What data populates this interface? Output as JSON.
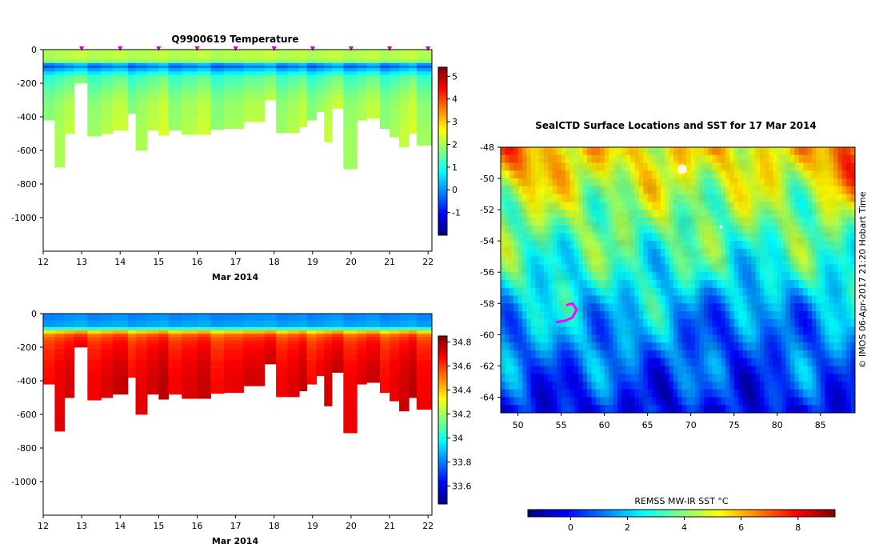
{
  "chart_data": [
    {
      "type": "heatmap",
      "title": "Q9900619  Temperature",
      "xlabel": "Mar 2014",
      "ylabel": "",
      "xlim": [
        12,
        22.1
      ],
      "ylim": [
        -1200,
        0
      ],
      "x_ticks": [
        "12",
        "13",
        "14",
        "15",
        "16",
        "17",
        "18",
        "19",
        "20",
        "21",
        "22"
      ],
      "y_ticks": [
        "0",
        "-200",
        "-400",
        "-600",
        "-800",
        "-1000"
      ],
      "colorbar": {
        "min": -2,
        "max": 5.4,
        "ticks": [
          "-1",
          "0",
          "1",
          "2",
          "3",
          "4",
          "5"
        ]
      },
      "surface_markers_x": [
        13,
        14,
        15,
        16,
        17,
        18,
        19,
        20,
        21,
        22
      ],
      "profile_x": [
        12.0,
        12.3,
        12.55,
        12.8,
        13.15,
        13.5,
        13.8,
        14.2,
        14.4,
        14.7,
        15.0,
        15.25,
        15.6,
        16.0,
        16.35,
        16.7,
        17.2,
        17.75,
        18.05,
        18.35,
        18.65,
        18.85,
        19.1,
        19.3,
        19.5,
        19.8,
        20.15,
        20.4,
        20.75,
        21.0,
        21.25,
        21.5,
        21.7,
        22.1
      ],
      "profile_max_depth": [
        420,
        700,
        500,
        200,
        515,
        500,
        480,
        380,
        600,
        480,
        510,
        480,
        505,
        505,
        475,
        470,
        430,
        300,
        495,
        495,
        460,
        420,
        370,
        550,
        350,
        710,
        420,
        410,
        470,
        520,
        580,
        500,
        570,
        580
      ],
      "layer_bounds_m": [
        0,
        40,
        60,
        80,
        95,
        110,
        130,
        150,
        170,
        190,
        210,
        240,
        270,
        300,
        340,
        400,
        470,
        560,
        720
      ],
      "temperature_profile_c": [
        2.1,
        2.1,
        1.8,
        0.2,
        -0.3,
        0.3,
        0.8,
        1.3,
        1.4,
        1.5,
        1.6,
        1.75,
        1.85,
        1.95,
        2.0,
        2.05,
        2.1,
        2.1
      ]
    },
    {
      "type": "heatmap",
      "title": "",
      "xlabel": "Mar 2014",
      "ylabel": "",
      "xlim": [
        12,
        22.1
      ],
      "ylim": [
        -1200,
        0
      ],
      "x_ticks": [
        "12",
        "13",
        "14",
        "15",
        "16",
        "17",
        "18",
        "19",
        "20",
        "21",
        "22"
      ],
      "y_ticks": [
        "0",
        "-200",
        "-400",
        "-600",
        "-800",
        "-1000"
      ],
      "colorbar": {
        "min": 33.45,
        "max": 34.85,
        "ticks": [
          "33.6",
          "33.8",
          "34",
          "34.2",
          "34.4",
          "34.6",
          "34.8"
        ]
      },
      "profile_x": [
        12.0,
        12.3,
        12.55,
        12.8,
        13.15,
        13.5,
        13.8,
        14.2,
        14.4,
        14.7,
        15.0,
        15.25,
        15.6,
        16.0,
        16.35,
        16.7,
        17.2,
        17.75,
        18.05,
        18.35,
        18.65,
        18.85,
        19.1,
        19.3,
        19.5,
        19.8,
        20.15,
        20.4,
        20.75,
        21.0,
        21.25,
        21.5,
        21.7,
        22.1
      ],
      "profile_max_depth": [
        420,
        700,
        500,
        200,
        515,
        500,
        480,
        380,
        600,
        480,
        510,
        480,
        505,
        505,
        475,
        470,
        430,
        300,
        495,
        495,
        460,
        420,
        370,
        550,
        350,
        710,
        420,
        410,
        470,
        520,
        580,
        500,
        570,
        580
      ],
      "layer_bounds_m": [
        0,
        40,
        80,
        100,
        120,
        140,
        160,
        180,
        210,
        240,
        280,
        330,
        380,
        440,
        520,
        620,
        720
      ],
      "salinity_profile_psu": [
        33.82,
        33.85,
        34.05,
        34.4,
        34.55,
        34.6,
        34.63,
        34.65,
        34.67,
        34.68,
        34.7,
        34.71,
        34.72,
        34.72,
        34.73,
        34.73
      ]
    },
    {
      "type": "heatmap",
      "title": "SealCTD Surface Locations and SST for 17 Mar 2014",
      "xlabel": "",
      "ylabel": "",
      "xlim": [
        48,
        89
      ],
      "ylim": [
        -65,
        -48
      ],
      "x_ticks": [
        "50",
        "55",
        "60",
        "65",
        "70",
        "75",
        "80",
        "85"
      ],
      "y_ticks": [
        "-48",
        "-50",
        "-52",
        "-54",
        "-56",
        "-58",
        "-60",
        "-62",
        "-64"
      ],
      "colorbar": {
        "label": "REMSS MW-IR SST °C",
        "min": -1.5,
        "max": 9.3,
        "ticks": [
          "0",
          "2",
          "4",
          "6",
          "8"
        ]
      },
      "seal_track": [
        [
          54.5,
          -59.2
        ],
        [
          55.5,
          -59.1
        ],
        [
          56.3,
          -58.9
        ],
        [
          56.8,
          -58.4
        ],
        [
          56.3,
          -58.0
        ],
        [
          55.7,
          -58.1
        ]
      ],
      "sst_rows_lat": [
        -48,
        -50,
        -52,
        -54,
        -56,
        -58,
        -60,
        -62,
        -64,
        -65
      ],
      "sst_rows_c": [
        5.5,
        4.8,
        4.0,
        3.4,
        2.9,
        2.2,
        1.6,
        1.0,
        0.3,
        -0.1
      ]
    }
  ],
  "credit": "© IMOS 06-Apr-2017 21:20 Hobart Time",
  "colors": {
    "jet": [
      "#00007f",
      "#0000ff",
      "#007fff",
      "#00ffff",
      "#7fff7f",
      "#ffff00",
      "#ff7f00",
      "#ff0000",
      "#7f0000"
    ],
    "seal_track": "#ff00ff",
    "marker": "#d000d0"
  }
}
